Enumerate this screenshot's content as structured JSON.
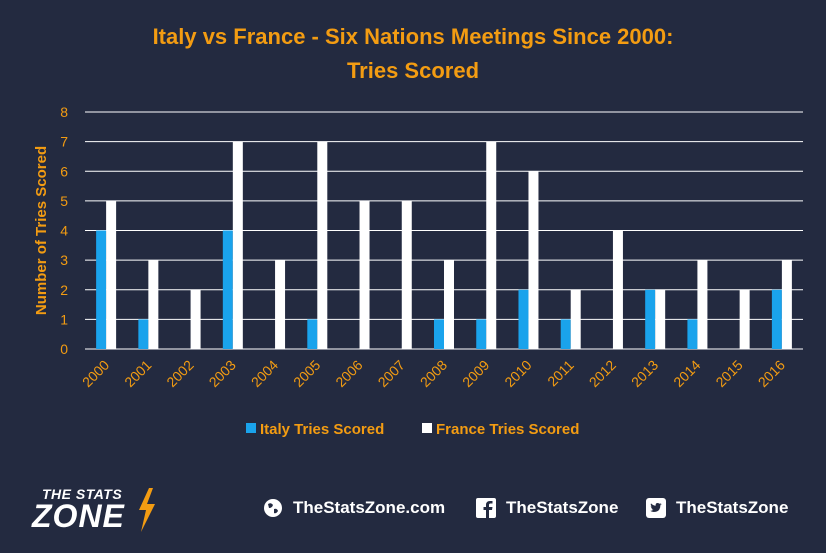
{
  "header": {
    "title_line1": "Italy vs France - Six Nations Meetings Since 2000:",
    "title_line2": "Tries Scored"
  },
  "colors": {
    "background": "#232a40",
    "accent": "#f39c12",
    "italy": "#1aa3ec",
    "france": "#ffffff",
    "grid": "#ffffff"
  },
  "chart_data": {
    "type": "bar",
    "categories": [
      "2000",
      "2001",
      "2002",
      "2003",
      "2004",
      "2005",
      "2006",
      "2007",
      "2008",
      "2009",
      "2010",
      "2011",
      "2012",
      "2013",
      "2014",
      "2015",
      "2016"
    ],
    "series": [
      {
        "name": "Italy Tries Scored",
        "values": [
          4,
          1,
          0,
          4,
          0,
          1,
          0,
          0,
          1,
          1,
          2,
          1,
          0,
          2,
          1,
          0,
          2
        ]
      },
      {
        "name": "France Tries Scored",
        "values": [
          5,
          3,
          2,
          7,
          3,
          7,
          5,
          5,
          3,
          7,
          6,
          2,
          4,
          2,
          3,
          2,
          3
        ]
      }
    ],
    "ylabel": "Number of Tries Scored",
    "xlabel": "",
    "ylim": [
      0,
      8
    ],
    "yticks": [
      0,
      1,
      2,
      3,
      4,
      5,
      6,
      7,
      8
    ],
    "grid": true,
    "legend_position": "bottom"
  },
  "footer": {
    "logo_line1": "THE STATS",
    "logo_line2": "ZONE",
    "website": "TheStatsZone.com",
    "facebook": "TheStatsZone",
    "twitter": "TheStatsZone",
    "icons": [
      "globe-icon",
      "facebook-icon",
      "twitter-icon"
    ]
  }
}
